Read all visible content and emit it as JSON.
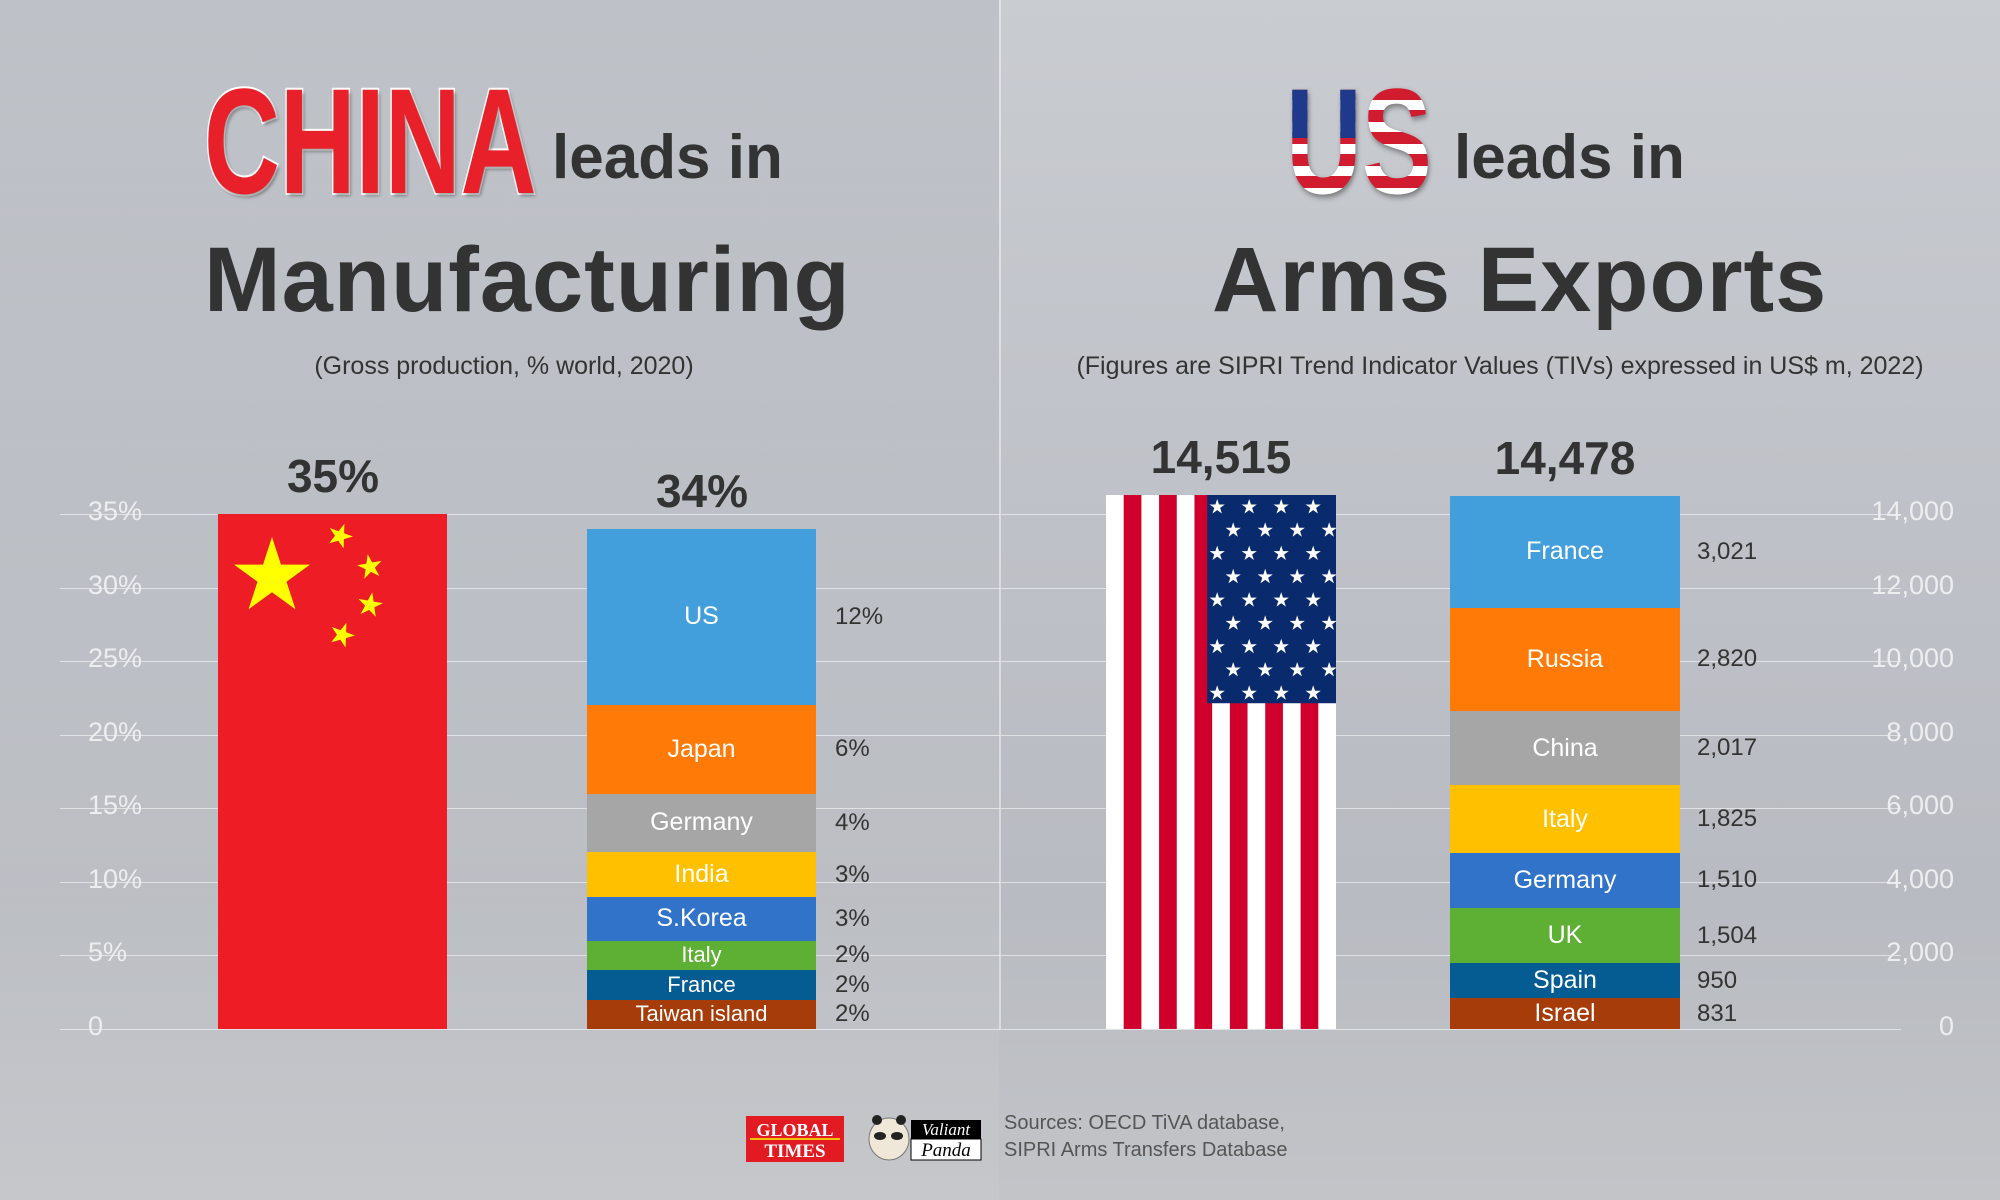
{
  "left": {
    "flag_word": "CHINA",
    "leads": "leads in",
    "headline": "Manufacturing",
    "subtitle": "(Gross production, % world, 2020)"
  },
  "right": {
    "flag_word": "US",
    "leads": "leads in",
    "headline": "Arms Exports",
    "subtitle": "(Figures are SIPRI Trend Indicator Values (TIVs) expressed in US$ m, 2022)"
  },
  "colors": {
    "china_red": "#ee1c25",
    "china_star": "#ffff00",
    "us_red": "#d0002d",
    "us_blue": "#0a2a6e"
  },
  "chart_data": [
    {
      "type": "bar",
      "stacked": true,
      "ylim": [
        0,
        35
      ],
      "yticks": [
        "0",
        "5%",
        "10%",
        "15%",
        "20%",
        "25%",
        "30%",
        "35%"
      ],
      "ytick_values": [
        0,
        5,
        10,
        15,
        20,
        25,
        30,
        35
      ],
      "axis_side": "left",
      "grid": true,
      "bars": [
        {
          "label": "35%",
          "value": 35,
          "fill": "china-flag"
        },
        {
          "label": "34%",
          "value": 34,
          "segments": [
            {
              "name": "US",
              "value": 12,
              "label": "12%",
              "color": "#439fdc"
            },
            {
              "name": "Japan",
              "value": 6,
              "label": "6%",
              "color": "#ff7a06"
            },
            {
              "name": "Germany",
              "value": 4,
              "label": "4%",
              "color": "#a6a6a6"
            },
            {
              "name": "India",
              "value": 3,
              "label": "3%",
              "color": "#ffc000"
            },
            {
              "name": "S.Korea",
              "value": 3,
              "label": "3%",
              "color": "#3173c9"
            },
            {
              "name": "Italy",
              "value": 2,
              "label": "2%",
              "color": "#5eb035"
            },
            {
              "name": "France",
              "value": 2,
              "label": "2%",
              "color": "#055c93"
            },
            {
              "name": "Taiwan island",
              "value": 2,
              "label": "2%",
              "color": "#a63c0a"
            }
          ]
        }
      ]
    },
    {
      "type": "bar",
      "stacked": true,
      "ylim": [
        0,
        14000
      ],
      "yticks": [
        "0",
        "2,000",
        "4,000",
        "6,000",
        "8,000",
        "10,000",
        "12,000",
        "14,000"
      ],
      "ytick_values": [
        0,
        2000,
        4000,
        6000,
        8000,
        10000,
        12000,
        14000
      ],
      "axis_side": "right",
      "grid": true,
      "bars": [
        {
          "label": "14,515",
          "value": 14515,
          "fill": "us-flag"
        },
        {
          "label": "14,478",
          "value": 14478,
          "segments": [
            {
              "name": "France",
              "value": 3021,
              "label": "3,021",
              "color": "#439fdc"
            },
            {
              "name": "Russia",
              "value": 2820,
              "label": "2,820",
              "color": "#ff7a06"
            },
            {
              "name": "China",
              "value": 2017,
              "label": "2,017",
              "color": "#a6a6a6"
            },
            {
              "name": "Italy",
              "value": 1825,
              "label": "1,825",
              "color": "#ffc000"
            },
            {
              "name": "Germany",
              "value": 1510,
              "label": "1,510",
              "color": "#3173c9"
            },
            {
              "name": "UK",
              "value": 1504,
              "label": "1,504",
              "color": "#5eb035"
            },
            {
              "name": "Spain",
              "value": 950,
              "label": "950",
              "color": "#055c93"
            },
            {
              "name": "Israel",
              "value": 831,
              "label": "831",
              "color": "#a63c0a"
            }
          ]
        }
      ]
    }
  ],
  "footer": {
    "logo1": "GLOBAL TIMES",
    "logo2": "Valiant Panda",
    "sources_line1": "Sources: OECD TiVA database,",
    "sources_line2": "SIPRI Arms Transfers Database"
  }
}
